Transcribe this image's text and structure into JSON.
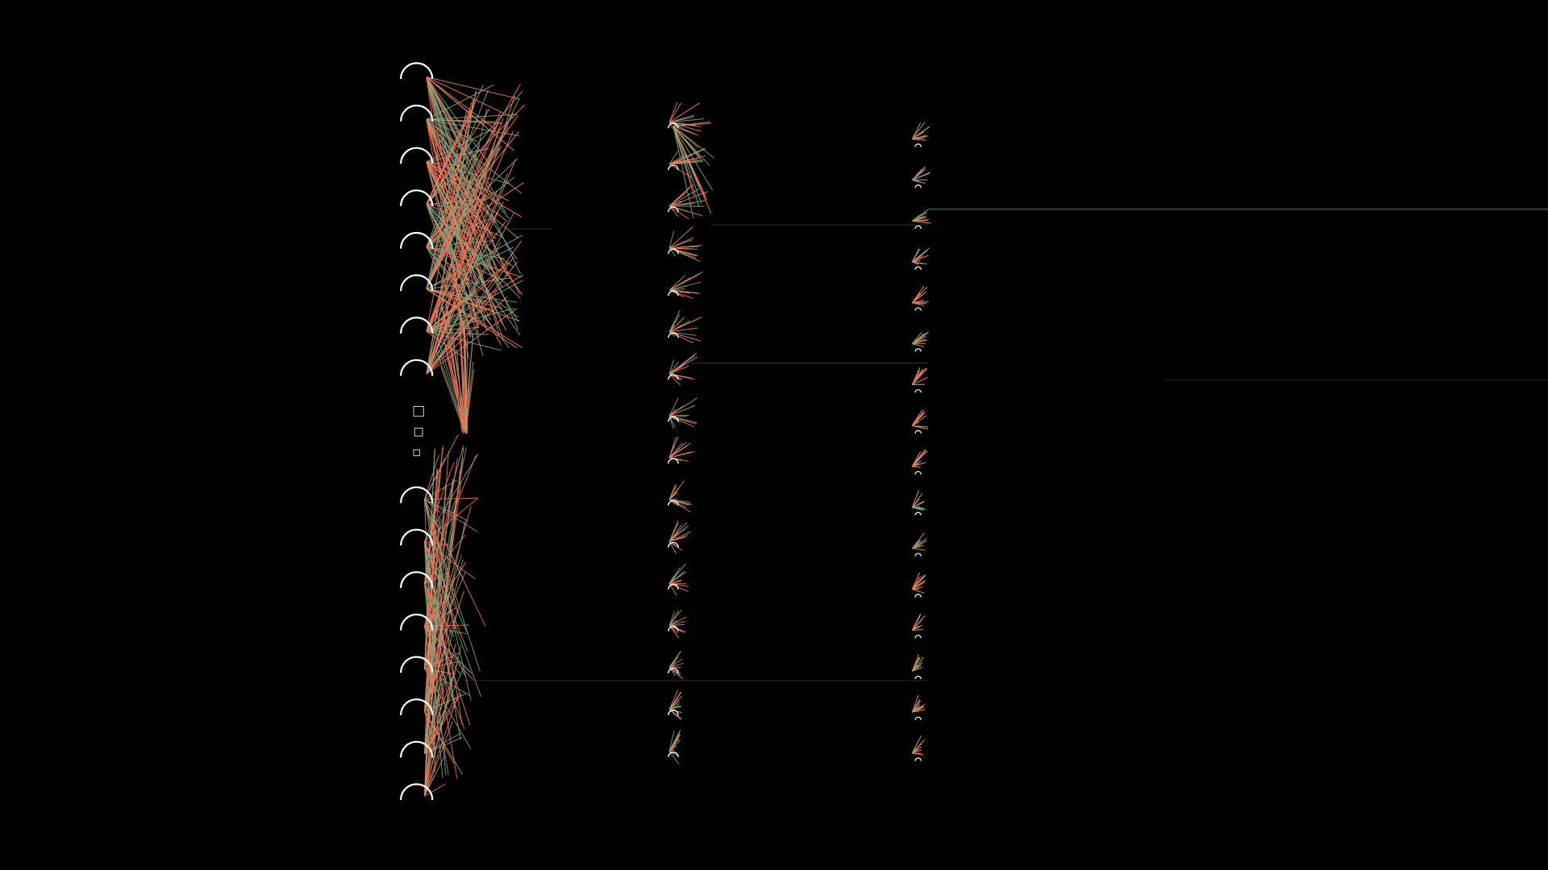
{
  "diagram": {
    "type": "neural-network",
    "layers": [
      {
        "nodes": 16,
        "ellipsis_after": 8
      },
      {
        "nodes": 16
      },
      {
        "nodes": 16
      }
    ],
    "colors": {
      "background": "#000000",
      "node_stroke": "#ffffff",
      "positive_edge": "#f4795c",
      "negative_edge": "#7fa47c",
      "guide_line": "#2a2a2a"
    }
  }
}
